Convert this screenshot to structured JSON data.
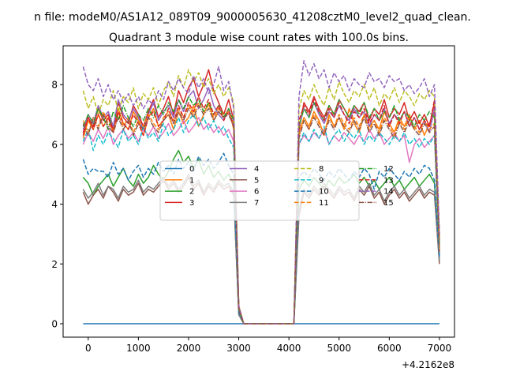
{
  "suptitle": "n file: modeM0/AS1A12_089T09_9000005630_41208cztM0_level2_quad_clean.",
  "chart_data": {
    "type": "line",
    "title": "Quadrant 3 module wise count rates with 100.0s bins.",
    "xlabel": "",
    "ylabel": "",
    "x_offset_label": "+4.2162e8",
    "xlim": [
      -500,
      7300
    ],
    "ylim": [
      -0.45,
      9.3
    ],
    "xticks": [
      0,
      1000,
      2000,
      3000,
      4000,
      5000,
      6000,
      7000
    ],
    "yticks": [
      0,
      2,
      4,
      6,
      8
    ],
    "grid": false,
    "legend": {
      "placement": "center",
      "ncol": 4
    },
    "x_start": -100,
    "x_step": 100,
    "gap": [
      3000,
      4100
    ],
    "series": [
      {
        "name": "0",
        "color": "#1f77b4",
        "dash": "solid",
        "values": [
          0.0,
          0.0,
          0.0,
          0.0,
          0.0,
          0.0,
          0.0,
          0.0,
          0.0,
          0.0,
          0.0,
          0.0,
          0.0,
          0.0,
          0.0,
          0.0,
          0.0,
          0.0,
          0.0,
          0.0,
          0.0,
          0.0,
          0.0,
          0.0,
          0.0,
          0.0,
          0.0,
          0.0,
          0.0,
          0.0,
          0.0,
          0.0,
          0.0,
          0.0,
          0.0,
          0.0,
          0.0,
          0.0,
          0.0,
          0.0,
          0.0,
          0.0,
          0.0,
          0.0,
          0.0,
          0.0,
          0.0,
          0.0,
          0.0,
          0.0,
          0.0,
          0.0,
          0.0,
          0.0,
          0.0,
          0.0,
          0.0,
          0.0,
          0.0,
          0.0,
          0.0,
          0.0,
          0.0,
          0.0,
          0.0,
          0.0,
          0.0,
          0.0,
          0.0,
          0.0,
          0.0,
          0.0
        ]
      },
      {
        "name": "1",
        "color": "#ff7f0e",
        "dash": "solid",
        "values": [
          6.2,
          6.8,
          6.5,
          7.0,
          6.6,
          6.9,
          6.4,
          7.2,
          6.7,
          6.5,
          7.1,
          6.8,
          6.3,
          6.9,
          7.2,
          6.6,
          6.8,
          7.0,
          6.5,
          7.1,
          6.7,
          6.9,
          7.3,
          6.6,
          7.0,
          7.4,
          6.8,
          7.1,
          6.9,
          7.2,
          6.5,
          0.5,
          0.0,
          0.0,
          0.0,
          0.0,
          0.0,
          0.0,
          0.0,
          0.0,
          0.0,
          0.0,
          0.0,
          6.4,
          6.9,
          6.6,
          7.1,
          6.8,
          6.3,
          7.0,
          6.6,
          6.9,
          6.5,
          7.2,
          6.7,
          6.4,
          7.0,
          6.6,
          6.8,
          6.5,
          7.1,
          6.7,
          6.4,
          6.9,
          6.6,
          7.0,
          6.5,
          6.8,
          6.3,
          6.7,
          7.0,
          2.6
        ]
      },
      {
        "name": "2",
        "color": "#2ca02c",
        "dash": "solid",
        "values": [
          4.9,
          4.7,
          4.3,
          4.6,
          4.8,
          5.0,
          4.6,
          4.9,
          5.2,
          4.8,
          4.6,
          5.0,
          4.7,
          4.9,
          5.3,
          5.0,
          4.8,
          5.1,
          5.5,
          5.8,
          5.4,
          5.6,
          5.2,
          5.5,
          5.0,
          5.3,
          4.9,
          5.1,
          4.8,
          5.0,
          4.7,
          0.4,
          0.0,
          0.0,
          0.0,
          0.0,
          0.0,
          0.0,
          0.0,
          0.0,
          0.0,
          0.0,
          0.0,
          4.5,
          4.8,
          4.6,
          4.9,
          4.7,
          4.5,
          4.8,
          4.6,
          4.9,
          4.7,
          4.8,
          5.0,
          4.7,
          4.9,
          4.6,
          4.8,
          4.5,
          4.7,
          4.9,
          4.6,
          4.8,
          4.5,
          4.7,
          4.9,
          4.6,
          4.8,
          5.0,
          4.7,
          2.1
        ]
      },
      {
        "name": "3",
        "color": "#d62728",
        "dash": "solid",
        "values": [
          6.3,
          6.9,
          6.6,
          7.2,
          6.8,
          7.0,
          6.5,
          7.4,
          6.9,
          6.7,
          7.3,
          7.0,
          6.6,
          7.1,
          7.5,
          6.9,
          7.2,
          7.6,
          7.0,
          7.8,
          7.4,
          7.9,
          8.2,
          7.6,
          8.0,
          8.5,
          7.8,
          7.4,
          7.0,
          7.5,
          6.8,
          0.6,
          0.0,
          0.0,
          0.0,
          0.0,
          0.0,
          0.0,
          0.0,
          0.0,
          0.0,
          0.0,
          0.0,
          6.5,
          7.4,
          7.1,
          7.6,
          7.2,
          6.9,
          7.3,
          7.0,
          7.5,
          7.2,
          6.9,
          7.3,
          7.1,
          7.4,
          6.8,
          7.2,
          7.0,
          7.5,
          6.9,
          7.2,
          7.0,
          7.4,
          6.8,
          7.1,
          6.7,
          7.0,
          6.6,
          7.4,
          2.8
        ]
      },
      {
        "name": "4",
        "color": "#9467bd",
        "dash": "solid",
        "values": [
          6.5,
          7.0,
          6.7,
          7.3,
          6.9,
          7.1,
          6.6,
          7.5,
          7.0,
          6.8,
          7.2,
          6.9,
          6.5,
          7.0,
          7.4,
          6.8,
          7.1,
          7.3,
          6.9,
          7.5,
          7.1,
          7.6,
          7.8,
          7.2,
          7.5,
          7.9,
          7.3,
          7.0,
          6.8,
          7.2,
          6.6,
          0.5,
          0.0,
          0.0,
          0.0,
          0.0,
          0.0,
          0.0,
          0.0,
          0.0,
          0.0,
          0.0,
          0.0,
          6.6,
          7.2,
          6.9,
          7.4,
          7.0,
          6.7,
          7.1,
          6.9,
          7.3,
          7.0,
          6.8,
          7.2,
          6.9,
          7.1,
          6.6,
          7.0,
          6.8,
          7.2,
          6.7,
          7.0,
          6.8,
          7.1,
          6.6,
          6.9,
          6.5,
          6.8,
          6.4,
          7.2,
          2.5
        ]
      },
      {
        "name": "5",
        "color": "#8c564b",
        "dash": "solid",
        "values": [
          4.4,
          4.0,
          4.3,
          4.5,
          4.2,
          4.6,
          4.4,
          4.1,
          4.5,
          4.3,
          4.4,
          4.7,
          4.3,
          4.5,
          4.4,
          4.6,
          4.8,
          4.5,
          4.7,
          4.4,
          4.6,
          4.9,
          4.5,
          4.7,
          4.3,
          4.6,
          4.4,
          4.7,
          4.5,
          4.6,
          4.3,
          0.3,
          0.0,
          0.0,
          0.0,
          0.0,
          0.0,
          0.0,
          0.0,
          0.0,
          0.0,
          0.0,
          0.0,
          3.6,
          4.4,
          4.2,
          4.5,
          4.3,
          4.6,
          4.4,
          4.2,
          4.5,
          4.3,
          4.4,
          4.1,
          4.5,
          4.3,
          4.6,
          4.2,
          4.4,
          4.0,
          4.3,
          4.5,
          4.2,
          4.4,
          4.1,
          4.3,
          4.5,
          4.2,
          4.4,
          4.3,
          2.0
        ]
      },
      {
        "name": "6",
        "color": "#e377c2",
        "dash": "solid",
        "values": [
          6.0,
          6.4,
          6.1,
          6.5,
          6.2,
          6.6,
          6.0,
          6.3,
          6.5,
          6.2,
          6.4,
          6.1,
          6.5,
          6.3,
          6.6,
          6.2,
          6.4,
          6.7,
          6.3,
          6.5,
          6.8,
          6.4,
          6.6,
          6.9,
          6.5,
          6.7,
          6.4,
          6.6,
          6.3,
          6.5,
          6.1,
          0.4,
          0.0,
          0.0,
          0.0,
          0.0,
          0.0,
          0.0,
          0.0,
          0.0,
          0.0,
          0.0,
          0.0,
          6.0,
          6.3,
          6.1,
          6.4,
          6.2,
          6.5,
          6.0,
          6.3,
          6.1,
          6.4,
          6.2,
          6.0,
          6.3,
          6.1,
          6.5,
          6.2,
          6.4,
          6.0,
          6.2,
          6.4,
          6.1,
          6.3,
          5.4,
          6.0,
          6.2,
          5.9,
          6.1,
          6.3,
          2.4
        ]
      },
      {
        "name": "7",
        "color": "#7f7f7f",
        "dash": "solid",
        "values": [
          4.5,
          4.2,
          4.4,
          4.7,
          4.3,
          4.6,
          4.5,
          4.2,
          4.6,
          4.4,
          4.5,
          4.8,
          4.4,
          4.6,
          4.5,
          4.7,
          4.9,
          4.6,
          4.8,
          4.5,
          4.7,
          5.0,
          4.6,
          4.8,
          4.4,
          4.7,
          4.5,
          4.8,
          4.6,
          4.7,
          4.4,
          0.3,
          0.0,
          0.0,
          0.0,
          0.0,
          0.0,
          0.0,
          0.0,
          0.0,
          0.0,
          0.0,
          0.0,
          3.8,
          4.5,
          4.3,
          4.6,
          4.4,
          4.7,
          4.5,
          4.3,
          4.6,
          4.4,
          4.5,
          4.2,
          4.6,
          4.4,
          4.7,
          4.3,
          4.5,
          4.1,
          4.4,
          4.6,
          4.3,
          4.5,
          4.2,
          4.4,
          4.6,
          4.3,
          4.5,
          4.4,
          2.1
        ]
      },
      {
        "name": "8",
        "color": "#bcbd22",
        "dash": "dash",
        "values": [
          7.8,
          7.2,
          7.6,
          7.0,
          7.5,
          7.3,
          7.8,
          7.1,
          7.6,
          7.4,
          7.9,
          7.2,
          7.7,
          7.5,
          7.9,
          7.3,
          7.8,
          8.1,
          7.6,
          8.3,
          7.9,
          8.5,
          8.1,
          8.4,
          7.9,
          8.2,
          7.7,
          8.0,
          7.6,
          7.9,
          7.4,
          0.6,
          0.0,
          0.0,
          0.0,
          0.0,
          0.0,
          0.0,
          0.0,
          0.0,
          0.0,
          0.0,
          0.0,
          7.2,
          7.8,
          7.5,
          8.0,
          7.6,
          7.3,
          7.9,
          7.5,
          8.1,
          7.7,
          7.4,
          7.8,
          7.6,
          8.0,
          7.5,
          7.9,
          7.3,
          7.7,
          7.5,
          7.9,
          7.4,
          7.8,
          7.6,
          7.3,
          7.7,
          7.5,
          7.8,
          7.6,
          2.9
        ]
      },
      {
        "name": "9",
        "color": "#17becf",
        "dash": "dash",
        "values": [
          6.1,
          6.5,
          5.8,
          6.3,
          6.0,
          6.4,
          6.2,
          5.9,
          6.5,
          6.1,
          6.3,
          6.0,
          6.6,
          6.2,
          6.4,
          6.1,
          6.7,
          6.3,
          6.5,
          6.9,
          6.4,
          6.8,
          7.0,
          6.6,
          6.9,
          6.5,
          6.8,
          6.4,
          6.6,
          6.2,
          5.9,
          0.4,
          0.0,
          0.0,
          0.0,
          0.0,
          0.0,
          0.0,
          0.0,
          0.0,
          0.0,
          0.0,
          0.0,
          6.0,
          6.4,
          6.1,
          6.5,
          6.2,
          6.6,
          6.0,
          6.3,
          6.5,
          6.1,
          6.4,
          6.2,
          6.5,
          6.0,
          6.3,
          6.1,
          6.4,
          6.2,
          6.0,
          6.3,
          6.1,
          6.4,
          6.0,
          6.2,
          5.9,
          6.2,
          6.0,
          6.3,
          2.3
        ]
      },
      {
        "name": "10",
        "color": "#1f77b4",
        "dash": "dash",
        "values": [
          5.5,
          5.0,
          5.2,
          5.1,
          5.1,
          4.9,
          5.4,
          5.0,
          5.2,
          4.8,
          5.1,
          5.3,
          4.9,
          5.2,
          5.0,
          5.4,
          5.1,
          5.3,
          5.0,
          5.5,
          5.2,
          5.4,
          5.1,
          5.6,
          5.3,
          5.5,
          5.2,
          5.4,
          5.7,
          5.3,
          5.0,
          0.4,
          0.0,
          0.0,
          0.0,
          0.0,
          0.0,
          0.0,
          0.0,
          0.0,
          0.0,
          0.0,
          0.0,
          4.9,
          5.1,
          4.9,
          5.2,
          5.0,
          4.8,
          5.1,
          4.9,
          5.2,
          5.0,
          4.8,
          5.1,
          4.9,
          5.2,
          5.0,
          4.5,
          5.1,
          4.9,
          5.2,
          5.0,
          4.8,
          5.1,
          4.9,
          5.2,
          5.0,
          5.3,
          5.2,
          4.8,
          2.2
        ]
      },
      {
        "name": "11",
        "color": "#ff7f0e",
        "dash": "dash",
        "values": [
          6.8,
          6.4,
          6.9,
          6.6,
          7.1,
          6.7,
          6.5,
          7.0,
          6.6,
          6.9,
          6.4,
          6.8,
          6.6,
          7.0,
          6.7,
          6.5,
          6.9,
          7.1,
          6.8,
          7.2,
          6.9,
          7.3,
          7.0,
          7.4,
          7.1,
          7.3,
          6.9,
          7.2,
          7.0,
          7.1,
          6.7,
          0.5,
          0.0,
          0.0,
          0.0,
          0.0,
          0.0,
          0.0,
          0.0,
          0.0,
          0.0,
          0.0,
          0.0,
          6.3,
          6.8,
          6.5,
          7.0,
          6.7,
          6.4,
          6.9,
          6.6,
          7.0,
          6.7,
          6.5,
          6.9,
          6.6,
          7.0,
          6.5,
          6.8,
          6.4,
          6.9,
          6.6,
          6.3,
          6.8,
          6.5,
          6.9,
          6.6,
          6.4,
          6.8,
          6.5,
          6.7,
          2.5
        ]
      },
      {
        "name": "12",
        "color": "#2ca02c",
        "dash": "dashdot",
        "values": [
          6.6,
          7.0,
          6.7,
          7.2,
          6.9,
          6.5,
          7.1,
          6.8,
          7.3,
          6.9,
          6.6,
          7.0,
          6.8,
          7.2,
          6.9,
          7.3,
          7.0,
          7.4,
          7.1,
          7.5,
          7.2,
          7.6,
          7.3,
          7.5,
          7.1,
          7.4,
          7.0,
          7.3,
          6.9,
          7.2,
          6.8,
          0.5,
          0.0,
          0.0,
          0.0,
          0.0,
          0.0,
          0.0,
          0.0,
          0.0,
          0.0,
          0.0,
          0.0,
          6.6,
          7.2,
          6.9,
          7.4,
          7.1,
          6.8,
          7.3,
          7.0,
          7.5,
          7.2,
          6.9,
          7.3,
          7.0,
          7.4,
          6.9,
          7.2,
          6.8,
          7.1,
          6.9,
          7.3,
          6.8,
          7.1,
          6.9,
          6.6,
          7.0,
          6.8,
          7.1,
          6.9,
          2.6
        ]
      },
      {
        "name": "13",
        "color": "#d62728",
        "dash": "dash",
        "values": [
          6.4,
          6.9,
          6.5,
          7.0,
          6.6,
          6.9,
          6.4,
          7.1,
          6.7,
          6.5,
          7.0,
          6.7,
          6.3,
          6.9,
          7.1,
          6.6,
          6.8,
          7.2,
          6.7,
          7.3,
          6.9,
          7.4,
          7.1,
          7.6,
          7.2,
          7.5,
          7.0,
          7.3,
          6.8,
          7.1,
          6.6,
          0.5,
          0.0,
          0.0,
          0.0,
          0.0,
          0.0,
          0.0,
          0.0,
          0.0,
          0.0,
          0.0,
          0.0,
          6.8,
          7.3,
          7.0,
          7.5,
          7.1,
          6.8,
          7.2,
          6.9,
          7.4,
          7.0,
          6.7,
          7.1,
          6.9,
          7.2,
          6.7,
          7.0,
          6.8,
          7.3,
          6.6,
          7.0,
          6.7,
          7.1,
          6.6,
          6.9,
          6.5,
          6.8,
          6.6,
          7.5,
          2.9
        ]
      },
      {
        "name": "14",
        "color": "#9467bd",
        "dash": "dash",
        "values": [
          8.6,
          8.0,
          7.8,
          8.2,
          7.6,
          8.0,
          7.5,
          7.8,
          7.4,
          7.7,
          7.3,
          7.6,
          7.2,
          7.5,
          7.3,
          7.8,
          7.5,
          8.1,
          7.8,
          8.2,
          7.9,
          7.7,
          8.3,
          7.9,
          8.2,
          7.7,
          8.0,
          8.6,
          7.8,
          8.1,
          7.2,
          0.6,
          0.0,
          0.0,
          0.0,
          0.0,
          0.0,
          0.0,
          0.0,
          0.0,
          0.0,
          0.0,
          0.0,
          7.6,
          8.8,
          8.3,
          8.7,
          8.2,
          8.5,
          7.9,
          8.4,
          8.1,
          8.3,
          7.8,
          8.2,
          8.0,
          7.9,
          8.4,
          8.1,
          8.2,
          7.9,
          8.3,
          8.1,
          8.2,
          7.8,
          8.0,
          7.7,
          7.9,
          8.2,
          7.6,
          8.0,
          3.0
        ]
      },
      {
        "name": "15",
        "color": "#8c564b",
        "dash": "dashdot",
        "values": [
          6.7,
          6.3,
          6.9,
          6.5,
          7.0,
          6.6,
          6.4,
          6.9,
          6.5,
          6.8,
          6.3,
          6.7,
          6.5,
          6.9,
          6.6,
          6.4,
          6.8,
          7.0,
          6.7,
          7.1,
          6.8,
          7.2,
          6.9,
          7.3,
          7.0,
          7.2,
          6.8,
          7.1,
          6.9,
          7.0,
          6.6,
          0.5,
          0.0,
          0.0,
          0.0,
          0.0,
          0.0,
          0.0,
          0.0,
          0.0,
          0.0,
          0.0,
          0.0,
          6.2,
          6.8,
          6.5,
          6.9,
          6.6,
          6.3,
          6.8,
          6.5,
          6.9,
          6.6,
          6.4,
          6.8,
          6.5,
          6.9,
          6.4,
          6.7,
          6.3,
          6.8,
          6.5,
          6.2,
          6.7,
          6.4,
          6.8,
          6.5,
          6.3,
          6.7,
          6.4,
          6.6,
          2.4
        ]
      }
    ]
  }
}
